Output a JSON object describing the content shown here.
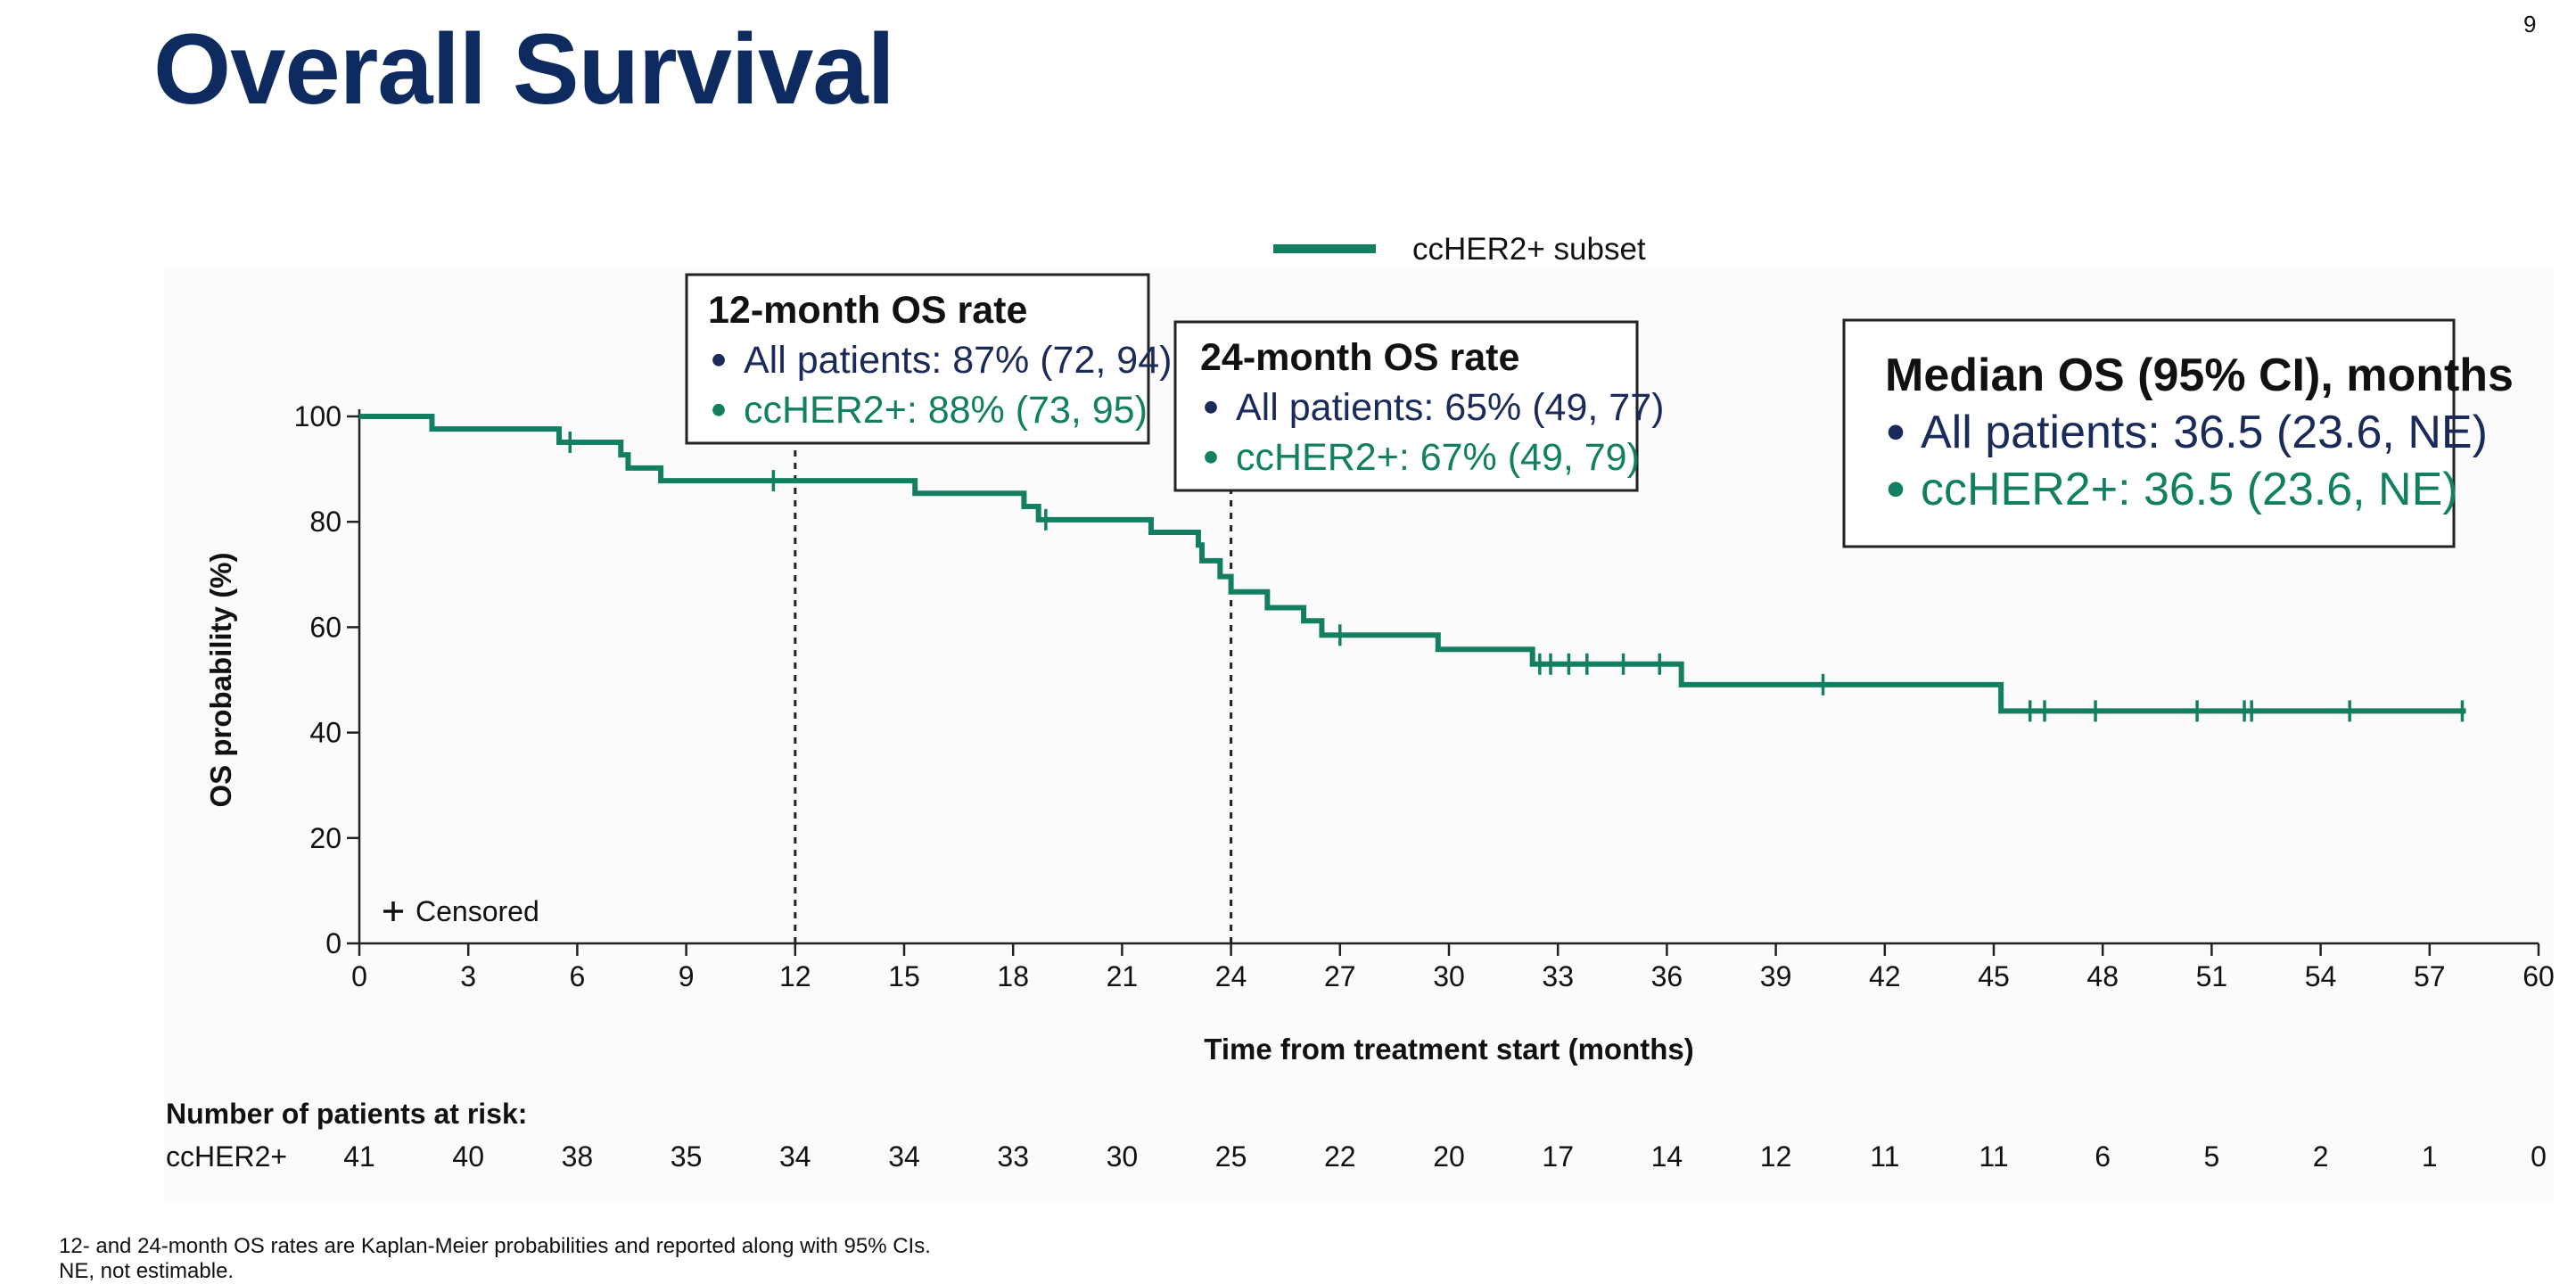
{
  "slide": {
    "title": "Overall Survival",
    "page_number": "9"
  },
  "colors": {
    "title": "#0d2b5e",
    "curve": "#128060",
    "navy": "#1a2a5a",
    "green": "#128060"
  },
  "chart_data": {
    "type": "line",
    "subtype": "kaplan-meier",
    "xlabel": "Time from treatment start (months)",
    "ylabel": "OS probability (%)",
    "xlim": [
      0,
      60
    ],
    "ylim": [
      0,
      100
    ],
    "xticks": [
      0,
      3,
      6,
      9,
      12,
      15,
      18,
      21,
      24,
      27,
      30,
      33,
      36,
      39,
      42,
      45,
      48,
      51,
      54,
      57,
      60
    ],
    "yticks": [
      0,
      20,
      40,
      60,
      80,
      100
    ],
    "legend": {
      "label": "ccHER2+ subset",
      "placement": "top-center"
    },
    "censored_label": "Censored",
    "series": [
      {
        "name": "ccHER2+ subset",
        "steps": [
          [
            0,
            100
          ],
          [
            2,
            97.6
          ],
          [
            5.5,
            95.1
          ],
          [
            7.2,
            92.7
          ],
          [
            7.4,
            90.2
          ],
          [
            8.3,
            87.8
          ],
          [
            15.3,
            85.4
          ],
          [
            18.3,
            82.9
          ],
          [
            18.7,
            80.4
          ],
          [
            21.8,
            78.0
          ],
          [
            23.1,
            75.6
          ],
          [
            23.2,
            72.6
          ],
          [
            23.7,
            69.6
          ],
          [
            24.0,
            66.7
          ],
          [
            25.0,
            63.7
          ],
          [
            26.0,
            61.2
          ],
          [
            26.5,
            58.5
          ],
          [
            29.7,
            55.8
          ],
          [
            32.3,
            53.0
          ],
          [
            36.4,
            49.1
          ],
          [
            45.2,
            44.1
          ],
          [
            58.0,
            44.1
          ]
        ],
        "censored": [
          [
            5.8,
            95.1
          ],
          [
            11.4,
            87.8
          ],
          [
            18.9,
            80.4
          ],
          [
            27.0,
            58.5
          ],
          [
            32.5,
            53.0
          ],
          [
            32.8,
            53.0
          ],
          [
            33.3,
            53.0
          ],
          [
            33.8,
            53.0
          ],
          [
            34.8,
            53.0
          ],
          [
            35.8,
            53.0
          ],
          [
            40.3,
            49.1
          ],
          [
            46.0,
            44.1
          ],
          [
            46.4,
            44.1
          ],
          [
            47.8,
            44.1
          ],
          [
            50.6,
            44.1
          ],
          [
            51.9,
            44.1
          ],
          [
            52.1,
            44.1
          ],
          [
            54.8,
            44.1
          ],
          [
            57.9,
            44.1
          ]
        ]
      }
    ],
    "reference_lines": [
      12,
      24
    ],
    "annotations": [
      {
        "title": "12-month OS rate",
        "lines": [
          {
            "text": "All patients: 87% (72, 94)",
            "color": "navy"
          },
          {
            "text": "ccHER2+: 88% (73, 95)",
            "color": "green"
          }
        ]
      },
      {
        "title": "24-month OS rate",
        "lines": [
          {
            "text": "All patients: 65% (49, 77)",
            "color": "navy"
          },
          {
            "text": "ccHER2+: 67% (49, 79)",
            "color": "green"
          }
        ]
      },
      {
        "title": "Median OS (95% CI), months",
        "lines": [
          {
            "text": "All patients: 36.5 (23.6, NE)",
            "color": "navy"
          },
          {
            "text": "ccHER2+: 36.5 (23.6, NE)",
            "color": "green"
          }
        ]
      }
    ],
    "risk_table": {
      "title": "Number of patients at risk:",
      "row_label": "ccHER2+",
      "values": [
        41,
        40,
        38,
        35,
        34,
        34,
        33,
        30,
        25,
        22,
        20,
        17,
        14,
        12,
        11,
        11,
        6,
        5,
        2,
        1,
        0
      ]
    }
  },
  "footnotes": {
    "line1": "12- and 24-month OS rates are Kaplan-Meier probabilities and reported along with 95% CIs.",
    "line2": "NE, not estimable."
  }
}
